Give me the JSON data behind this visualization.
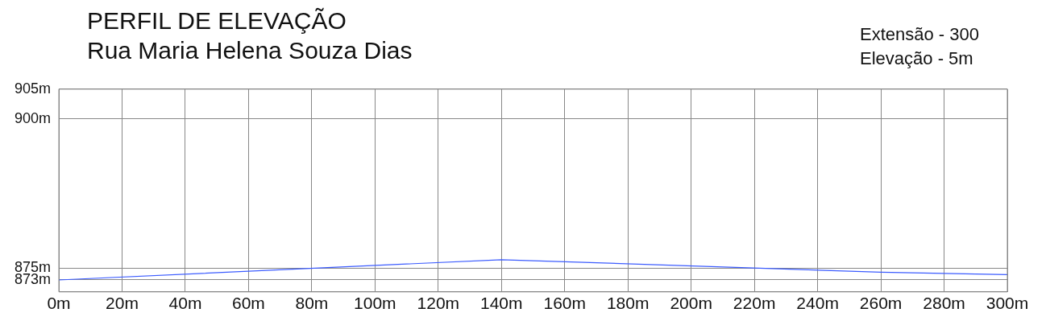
{
  "chart_data": {
    "type": "line",
    "title": "PERFIL DE ELEVAÇÃO",
    "subtitle": "Rua Maria Helena Souza Dias",
    "annotations": [
      "Extensão - 300",
      "Elevação - 5m"
    ],
    "x": [
      0,
      140,
      260,
      300
    ],
    "series": [
      {
        "color": "#3c5cff",
        "values": [
          873,
          876.4,
          874.3,
          873.9
        ]
      }
    ],
    "xlim": [
      0,
      300
    ],
    "xticks": [
      {
        "value": 0,
        "label": "0m"
      },
      {
        "value": 20,
        "label": "20m"
      },
      {
        "value": 40,
        "label": "40m"
      },
      {
        "value": 60,
        "label": "60m"
      },
      {
        "value": 80,
        "label": "80m"
      },
      {
        "value": 100,
        "label": "100m"
      },
      {
        "value": 120,
        "label": "120m"
      },
      {
        "value": 140,
        "label": "140m"
      },
      {
        "value": 160,
        "label": "160m"
      },
      {
        "value": 180,
        "label": "180m"
      },
      {
        "value": 200,
        "label": "200m"
      },
      {
        "value": 220,
        "label": "220m"
      },
      {
        "value": 240,
        "label": "240m"
      },
      {
        "value": 260,
        "label": "260m"
      },
      {
        "value": 280,
        "label": "280m"
      },
      {
        "value": 300,
        "label": "300m"
      }
    ],
    "ylim": [
      871,
      905
    ],
    "yticks": [
      {
        "value": 873,
        "label": "873m"
      },
      {
        "value": 875,
        "label": "875m"
      },
      {
        "value": 900,
        "label": "900m"
      },
      {
        "value": 905,
        "label": "905m"
      }
    ],
    "grid": true,
    "legend": false,
    "marker": "none",
    "line_style": "solid"
  }
}
